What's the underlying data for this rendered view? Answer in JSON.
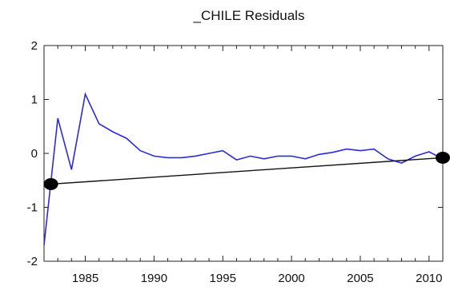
{
  "chart_data": {
    "type": "line",
    "title": "_CHILE Residuals",
    "xlabel": "",
    "ylabel": "",
    "xlim": [
      1982,
      2011
    ],
    "ylim": [
      -2,
      2
    ],
    "x_ticks": [
      1985,
      1990,
      1995,
      2000,
      2005,
      2010
    ],
    "y_ticks": [
      -2,
      -1,
      0,
      1,
      2
    ],
    "x_tick_labels": [
      "1985",
      "1990",
      "1995",
      "2000",
      "2005",
      "2010"
    ],
    "y_tick_labels": [
      "-2",
      "-1",
      "0",
      "1",
      "2"
    ],
    "grid": false,
    "legend": "none",
    "series": [
      {
        "color": "#2b2bd9",
        "x": [
          1982,
          1983,
          1984,
          1985,
          1986,
          1987,
          1988,
          1989,
          1990,
          1991,
          1992,
          1993,
          1994,
          1995,
          1996,
          1997,
          1998,
          1999,
          2000,
          2001,
          2002,
          2003,
          2004,
          2005,
          2006,
          2007,
          2008,
          2009,
          2010,
          2011
        ],
        "values": [
          -1.7,
          0.65,
          -0.3,
          1.1,
          0.55,
          0.4,
          0.28,
          0.05,
          -0.05,
          -0.08,
          -0.08,
          -0.05,
          0.0,
          0.05,
          -0.12,
          -0.05,
          -0.1,
          -0.05,
          -0.05,
          -0.1,
          -0.02,
          0.02,
          0.08,
          0.05,
          0.08,
          -0.1,
          -0.18,
          -0.05,
          0.03,
          -0.1
        ]
      }
    ],
    "overlay_line": {
      "color": "#111111",
      "x": [
        1982.5,
        2011
      ],
      "values": [
        -0.57,
        -0.08
      ]
    },
    "markers": [
      {
        "x": 1982.5,
        "y": -0.57,
        "color": "#000000"
      },
      {
        "x": 2011,
        "y": -0.08,
        "color": "#000000"
      }
    ]
  }
}
